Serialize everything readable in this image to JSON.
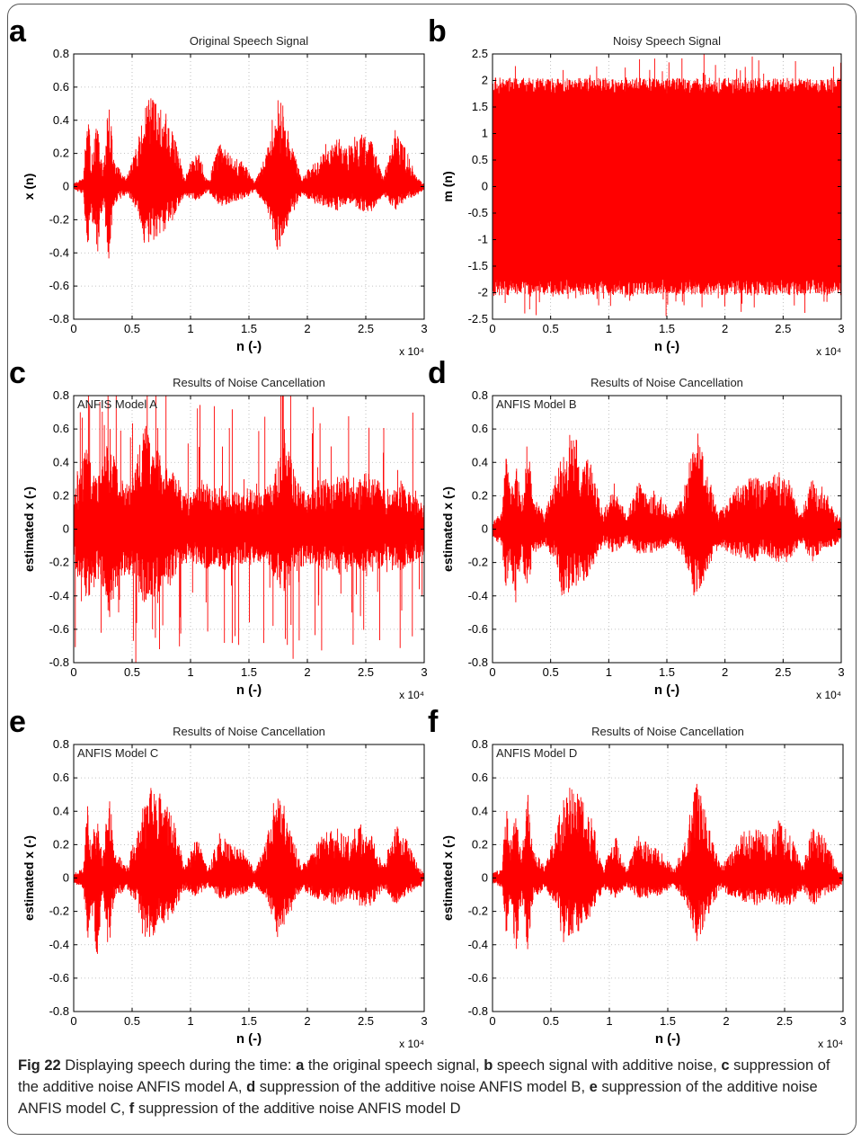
{
  "figure": {
    "caption": {
      "lead": "Fig 22",
      "text": " Displaying speech during the time: ",
      "parts": [
        {
          "letter": "a",
          "text": " the original speech signal, "
        },
        {
          "letter": "b",
          "text": " speech signal with additive noise, "
        },
        {
          "letter": "c",
          "text": " suppression of the additive noise ANFIS model A, "
        },
        {
          "letter": "d",
          "text": " suppression of the additive noise ANFIS model B, "
        },
        {
          "letter": "e",
          "text": " suppression of the additive noise ANFIS model C, "
        },
        {
          "letter": "f",
          "text": " suppression of the additive noise ANFIS model D"
        }
      ]
    },
    "colors": {
      "signal": "#ff0000",
      "axis": "#000000",
      "grid": "#b0b0b0"
    }
  },
  "chart_data": [
    {
      "panel": "a",
      "type": "line",
      "title": "Original Speech Signal",
      "xlabel": "n (-)",
      "ylabel": "x (n)",
      "xlim": [
        0,
        30000
      ],
      "ylim": [
        -0.8,
        0.8
      ],
      "x_multiplier": "x 10⁴",
      "xticks": [
        0,
        0.5,
        1,
        1.5,
        2,
        2.5,
        3
      ],
      "yticks": [
        -0.8,
        -0.6,
        -0.4,
        -0.2,
        0,
        0.2,
        0.4,
        0.6,
        0.8
      ],
      "annotation": "",
      "grid": true,
      "envelope_x": [
        0,
        0.08,
        0.12,
        0.15,
        0.2,
        0.25,
        0.3,
        0.35,
        0.45,
        0.55,
        0.6,
        0.65,
        0.75,
        0.85,
        0.95,
        1.05,
        1.15,
        1.25,
        1.35,
        1.45,
        1.55,
        1.65,
        1.75,
        1.85,
        1.95,
        2.05,
        2.15,
        2.25,
        2.35,
        2.45,
        2.55,
        2.65,
        2.75,
        2.85,
        2.95,
        3.0
      ],
      "envelope_upper": [
        0.02,
        0.05,
        0.45,
        0.2,
        0.38,
        0.1,
        0.55,
        0.15,
        0.05,
        0.28,
        0.45,
        0.55,
        0.5,
        0.35,
        0.05,
        0.25,
        0.03,
        0.28,
        0.18,
        0.15,
        0.03,
        0.2,
        0.62,
        0.3,
        0.05,
        0.15,
        0.28,
        0.3,
        0.25,
        0.35,
        0.28,
        0.05,
        0.35,
        0.22,
        0.05,
        0.02
      ],
      "envelope_lower": [
        -0.02,
        -0.05,
        -0.38,
        -0.15,
        -0.45,
        -0.1,
        -0.45,
        -0.1,
        -0.05,
        -0.15,
        -0.38,
        -0.35,
        -0.3,
        -0.2,
        -0.05,
        -0.1,
        -0.03,
        -0.12,
        -0.1,
        -0.08,
        -0.03,
        -0.12,
        -0.4,
        -0.2,
        -0.05,
        -0.1,
        -0.12,
        -0.15,
        -0.1,
        -0.15,
        -0.15,
        -0.05,
        -0.15,
        -0.08,
        -0.05,
        -0.02
      ]
    },
    {
      "panel": "b",
      "type": "line",
      "title": "Noisy Speech Signal",
      "xlabel": "n (-)",
      "ylabel": "m (n)",
      "xlim": [
        0,
        30000
      ],
      "ylim": [
        -2.5,
        2.5
      ],
      "x_multiplier": "x 10⁴",
      "xticks": [
        0,
        0.5,
        1,
        1.5,
        2,
        2.5,
        3
      ],
      "yticks": [
        -2.5,
        -2,
        -1.5,
        -1,
        -0.5,
        0,
        0.5,
        1,
        1.5,
        2,
        2.5
      ],
      "annotation": "",
      "grid": true,
      "envelope_x": [
        0,
        0.5,
        1.0,
        1.5,
        2.0,
        2.5,
        3.0
      ],
      "envelope_upper": [
        1.9,
        1.9,
        1.9,
        1.9,
        1.9,
        1.9,
        1.9
      ],
      "envelope_lower": [
        -1.9,
        -1.9,
        -1.9,
        -1.9,
        -1.9,
        -1.9,
        -1.9
      ]
    },
    {
      "panel": "c",
      "type": "line",
      "title": "Results of Noise Cancellation",
      "xlabel": "n (-)",
      "ylabel": "estimated  x (-)",
      "xlim": [
        0,
        30000
      ],
      "ylim": [
        -0.8,
        0.8
      ],
      "x_multiplier": "x 10⁴",
      "xticks": [
        0,
        0.5,
        1,
        1.5,
        2,
        2.5,
        3
      ],
      "yticks": [
        -0.8,
        -0.6,
        -0.4,
        -0.2,
        0,
        0.2,
        0.4,
        0.6,
        0.8
      ],
      "annotation": "ANFIS Model A",
      "grid": true,
      "envelope_x": [
        0,
        0.1,
        0.2,
        0.3,
        0.4,
        0.5,
        0.6,
        0.7,
        0.8,
        0.9,
        1.0,
        1.1,
        1.2,
        1.3,
        1.4,
        1.5,
        1.6,
        1.7,
        1.8,
        1.9,
        2.0,
        2.1,
        2.2,
        2.3,
        2.4,
        2.5,
        2.6,
        2.7,
        2.8,
        2.9,
        3.0
      ],
      "envelope_upper": [
        0.2,
        0.5,
        0.3,
        0.62,
        0.3,
        0.3,
        0.62,
        0.55,
        0.4,
        0.28,
        0.2,
        0.3,
        0.25,
        0.28,
        0.22,
        0.25,
        0.22,
        0.28,
        0.62,
        0.3,
        0.2,
        0.3,
        0.3,
        0.35,
        0.25,
        0.35,
        0.3,
        0.2,
        0.3,
        0.2,
        0.15
      ],
      "envelope_lower": [
        -0.2,
        -0.45,
        -0.3,
        -0.5,
        -0.3,
        -0.3,
        -0.45,
        -0.4,
        -0.35,
        -0.25,
        -0.2,
        -0.25,
        -0.22,
        -0.25,
        -0.2,
        -0.22,
        -0.2,
        -0.25,
        -0.4,
        -0.28,
        -0.2,
        -0.25,
        -0.25,
        -0.28,
        -0.22,
        -0.28,
        -0.25,
        -0.2,
        -0.25,
        -0.2,
        -0.15
      ]
    },
    {
      "panel": "d",
      "type": "line",
      "title": "Results of Noise Cancellation",
      "xlabel": "n (-)",
      "ylabel": "estimated  x (-)",
      "xlim": [
        0,
        30000
      ],
      "ylim": [
        -0.8,
        0.8
      ],
      "x_multiplier": "x 10⁴",
      "xticks": [
        0,
        0.5,
        1,
        1.5,
        2,
        2.5,
        3
      ],
      "yticks": [
        -0.8,
        -0.6,
        -0.4,
        -0.2,
        0,
        0.2,
        0.4,
        0.6,
        0.8
      ],
      "annotation": "ANFIS Model B",
      "grid": true,
      "envelope_x": [
        0,
        0.08,
        0.12,
        0.15,
        0.2,
        0.25,
        0.3,
        0.35,
        0.45,
        0.55,
        0.6,
        0.65,
        0.75,
        0.85,
        0.95,
        1.05,
        1.15,
        1.25,
        1.35,
        1.45,
        1.55,
        1.65,
        1.75,
        1.85,
        1.95,
        2.05,
        2.15,
        2.25,
        2.35,
        2.45,
        2.55,
        2.65,
        2.75,
        2.85,
        2.95,
        3.0
      ],
      "envelope_upper": [
        0.05,
        0.1,
        0.5,
        0.25,
        0.42,
        0.15,
        0.58,
        0.2,
        0.1,
        0.35,
        0.5,
        0.58,
        0.52,
        0.4,
        0.1,
        0.28,
        0.08,
        0.28,
        0.25,
        0.2,
        0.08,
        0.25,
        0.62,
        0.35,
        0.1,
        0.2,
        0.3,
        0.32,
        0.28,
        0.35,
        0.3,
        0.1,
        0.3,
        0.25,
        0.1,
        0.06
      ],
      "envelope_lower": [
        -0.05,
        -0.1,
        -0.42,
        -0.2,
        -0.48,
        -0.15,
        -0.45,
        -0.15,
        -0.1,
        -0.2,
        -0.42,
        -0.38,
        -0.35,
        -0.25,
        -0.1,
        -0.15,
        -0.08,
        -0.15,
        -0.15,
        -0.12,
        -0.08,
        -0.18,
        -0.45,
        -0.25,
        -0.1,
        -0.15,
        -0.18,
        -0.2,
        -0.15,
        -0.2,
        -0.2,
        -0.1,
        -0.2,
        -0.12,
        -0.1,
        -0.06
      ]
    },
    {
      "panel": "e",
      "type": "line",
      "title": "Results of Noise Cancellation",
      "xlabel": "n (-)",
      "ylabel": "estimated  x (-)",
      "xlim": [
        0,
        30000
      ],
      "ylim": [
        -0.8,
        0.8
      ],
      "x_multiplier": "x 10⁴",
      "xticks": [
        0,
        0.5,
        1,
        1.5,
        2,
        2.5,
        3
      ],
      "yticks": [
        -0.8,
        -0.6,
        -0.4,
        -0.2,
        0,
        0.2,
        0.4,
        0.6,
        0.8
      ],
      "annotation": "ANFIS Model C",
      "grid": true,
      "envelope_x": [
        0,
        0.08,
        0.12,
        0.15,
        0.2,
        0.25,
        0.3,
        0.35,
        0.45,
        0.55,
        0.6,
        0.65,
        0.75,
        0.85,
        0.95,
        1.05,
        1.15,
        1.25,
        1.35,
        1.45,
        1.55,
        1.65,
        1.75,
        1.85,
        1.95,
        2.05,
        2.15,
        2.25,
        2.35,
        2.45,
        2.55,
        2.65,
        2.75,
        2.85,
        2.95,
        3.0
      ],
      "envelope_upper": [
        0.03,
        0.06,
        0.46,
        0.22,
        0.4,
        0.12,
        0.55,
        0.17,
        0.07,
        0.3,
        0.46,
        0.55,
        0.5,
        0.36,
        0.07,
        0.26,
        0.05,
        0.28,
        0.2,
        0.17,
        0.05,
        0.22,
        0.63,
        0.32,
        0.07,
        0.17,
        0.28,
        0.3,
        0.26,
        0.35,
        0.28,
        0.07,
        0.33,
        0.23,
        0.07,
        0.03
      ],
      "envelope_lower": [
        -0.03,
        -0.06,
        -0.4,
        -0.17,
        -0.48,
        -0.12,
        -0.45,
        -0.12,
        -0.07,
        -0.17,
        -0.4,
        -0.36,
        -0.32,
        -0.22,
        -0.07,
        -0.12,
        -0.05,
        -0.13,
        -0.12,
        -0.1,
        -0.05,
        -0.14,
        -0.4,
        -0.22,
        -0.07,
        -0.12,
        -0.14,
        -0.17,
        -0.12,
        -0.17,
        -0.17,
        -0.07,
        -0.17,
        -0.1,
        -0.07,
        -0.03
      ]
    },
    {
      "panel": "f",
      "type": "line",
      "title": "Results of Noise Cancellation",
      "xlabel": "n (-)",
      "ylabel": "estimated  x (-)",
      "xlim": [
        0,
        30000
      ],
      "ylim": [
        -0.8,
        0.8
      ],
      "x_multiplier": "x 10⁴",
      "xticks": [
        0,
        0.5,
        1,
        1.5,
        2,
        2.5,
        3
      ],
      "yticks": [
        -0.8,
        -0.6,
        -0.4,
        -0.2,
        0,
        0.2,
        0.4,
        0.6,
        0.8
      ],
      "annotation": "ANFIS Model D",
      "grid": true,
      "envelope_x": [
        0,
        0.08,
        0.12,
        0.15,
        0.2,
        0.25,
        0.3,
        0.35,
        0.45,
        0.55,
        0.6,
        0.65,
        0.75,
        0.85,
        0.95,
        1.05,
        1.15,
        1.25,
        1.35,
        1.45,
        1.55,
        1.65,
        1.75,
        1.85,
        1.95,
        2.05,
        2.15,
        2.25,
        2.35,
        2.45,
        2.55,
        2.65,
        2.75,
        2.85,
        2.95,
        3.0
      ],
      "envelope_upper": [
        0.03,
        0.06,
        0.47,
        0.22,
        0.4,
        0.12,
        0.56,
        0.17,
        0.07,
        0.3,
        0.47,
        0.55,
        0.5,
        0.36,
        0.07,
        0.26,
        0.05,
        0.27,
        0.2,
        0.17,
        0.05,
        0.22,
        0.63,
        0.32,
        0.07,
        0.17,
        0.28,
        0.3,
        0.26,
        0.35,
        0.27,
        0.07,
        0.33,
        0.23,
        0.07,
        0.03
      ],
      "envelope_lower": [
        -0.03,
        -0.06,
        -0.4,
        -0.17,
        -0.47,
        -0.12,
        -0.46,
        -0.12,
        -0.07,
        -0.17,
        -0.4,
        -0.36,
        -0.32,
        -0.22,
        -0.07,
        -0.12,
        -0.05,
        -0.13,
        -0.12,
        -0.1,
        -0.05,
        -0.14,
        -0.4,
        -0.22,
        -0.07,
        -0.12,
        -0.14,
        -0.17,
        -0.12,
        -0.17,
        -0.17,
        -0.07,
        -0.17,
        -0.1,
        -0.07,
        -0.03
      ]
    }
  ]
}
